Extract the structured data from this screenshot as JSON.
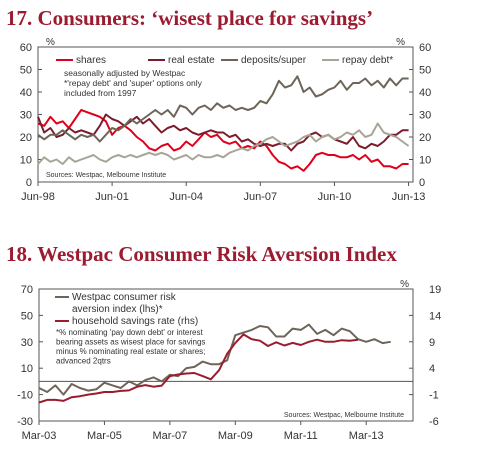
{
  "chart_data": [
    {
      "type": "line",
      "title": "17. Consumers: ‘wisest place for savings’",
      "y_unit_left": "%",
      "y_unit_right": "%",
      "ylim": [
        0,
        60
      ],
      "y_ticks": [
        0,
        10,
        20,
        30,
        40,
        50,
        60
      ],
      "x_tick_labels": [
        "Jun-98",
        "Jun-01",
        "Jun-04",
        "Jun-07",
        "Jun-10",
        "Jun-13"
      ],
      "x_ticks": [
        1998.42,
        2001.42,
        2004.42,
        2007.42,
        2010.42,
        2013.42
      ],
      "xlim": [
        1998.42,
        2013.6
      ],
      "notes": [
        "seasonally adjusted by Westpac",
        "*'repay debt' and 'super' options only",
        "included from 1997"
      ],
      "source": "Sources:  Westpac, Melbourne Institute",
      "series": [
        {
          "name": "shares",
          "color": "#e0001b",
          "x": [
            1998.42,
            1998.67,
            1998.92,
            1999.17,
            1999.42,
            1999.67,
            1999.92,
            2000.17,
            2000.42,
            2000.67,
            2000.92,
            2001.17,
            2001.42,
            2001.67,
            2001.92,
            2002.17,
            2002.42,
            2002.67,
            2002.92,
            2003.17,
            2003.42,
            2003.67,
            2003.92,
            2004.17,
            2004.42,
            2004.67,
            2004.92,
            2005.17,
            2005.42,
            2005.67,
            2005.92,
            2006.17,
            2006.42,
            2006.67,
            2006.92,
            2007.17,
            2007.42,
            2007.67,
            2007.92,
            2008.17,
            2008.42,
            2008.67,
            2008.92,
            2009.17,
            2009.42,
            2009.67,
            2009.92,
            2010.17,
            2010.42,
            2010.67,
            2010.92,
            2011.17,
            2011.42,
            2011.67,
            2011.92,
            2012.17,
            2012.42,
            2012.67,
            2012.92,
            2013.17,
            2013.42
          ],
          "y": [
            26,
            25,
            29,
            26,
            27,
            24,
            28,
            32,
            31,
            30,
            29,
            27,
            21,
            24,
            25,
            23,
            20,
            18,
            15,
            14,
            16,
            17,
            14,
            15,
            18,
            16,
            19,
            22,
            20,
            21,
            18,
            17,
            18,
            15,
            16,
            15,
            18,
            16,
            12,
            9,
            8,
            6,
            7,
            5,
            8,
            12,
            13,
            12,
            12,
            11,
            11,
            12,
            10,
            12,
            9,
            10,
            7,
            7,
            6,
            8,
            8
          ]
        },
        {
          "name": "real estate",
          "color": "#7a1c2c",
          "x": [
            1998.42,
            1998.67,
            1998.92,
            1999.17,
            1999.42,
            1999.67,
            1999.92,
            2000.17,
            2000.42,
            2000.67,
            2000.92,
            2001.17,
            2001.42,
            2001.67,
            2001.92,
            2002.17,
            2002.42,
            2002.67,
            2002.92,
            2003.17,
            2003.42,
            2003.67,
            2003.92,
            2004.17,
            2004.42,
            2004.67,
            2004.92,
            2005.17,
            2005.42,
            2005.67,
            2005.92,
            2006.17,
            2006.42,
            2006.67,
            2006.92,
            2007.17,
            2007.42,
            2007.67,
            2007.92,
            2008.17,
            2008.42,
            2008.67,
            2008.92,
            2009.17,
            2009.42,
            2009.67,
            2009.92,
            2010.17,
            2010.42,
            2010.67,
            2010.92,
            2011.17,
            2011.42,
            2011.67,
            2011.92,
            2012.17,
            2012.42,
            2012.67,
            2012.92,
            2013.17,
            2013.42
          ],
          "y": [
            29,
            22,
            24,
            20,
            21,
            24,
            22,
            23,
            22,
            21,
            25,
            30,
            28,
            27,
            25,
            27,
            29,
            26,
            28,
            25,
            22,
            24,
            25,
            23,
            24,
            22,
            21,
            22,
            23,
            22,
            22,
            20,
            21,
            18,
            19,
            17,
            16,
            17,
            16,
            17,
            17,
            14,
            17,
            18,
            21,
            22,
            20,
            21,
            19,
            18,
            17,
            20,
            16,
            15,
            17,
            16,
            18,
            21,
            21,
            23,
            23
          ]
        },
        {
          "name": "deposits/super",
          "color": "#6e6559",
          "x": [
            1998.42,
            1998.67,
            1998.92,
            1999.17,
            1999.42,
            1999.67,
            1999.92,
            2000.17,
            2000.42,
            2000.67,
            2000.92,
            2001.17,
            2001.42,
            2001.67,
            2001.92,
            2002.17,
            2002.42,
            2002.67,
            2002.92,
            2003.17,
            2003.42,
            2003.67,
            2003.92,
            2004.17,
            2004.42,
            2004.67,
            2004.92,
            2005.17,
            2005.42,
            2005.67,
            2005.92,
            2006.17,
            2006.42,
            2006.67,
            2006.92,
            2007.17,
            2007.42,
            2007.67,
            2007.92,
            2008.17,
            2008.42,
            2008.67,
            2008.92,
            2009.17,
            2009.42,
            2009.67,
            2009.92,
            2010.17,
            2010.42,
            2010.67,
            2010.92,
            2011.17,
            2011.42,
            2011.67,
            2011.92,
            2012.17,
            2012.42,
            2012.67,
            2012.92,
            2013.17,
            2013.42
          ],
          "y": [
            21,
            19,
            21,
            21,
            23,
            21,
            19,
            21,
            20,
            21,
            18,
            21,
            24,
            23,
            25,
            28,
            26,
            28,
            30,
            32,
            30,
            32,
            29,
            34,
            33,
            30,
            33,
            34,
            32,
            35,
            33,
            34,
            32,
            33,
            32,
            33,
            36,
            35,
            39,
            45,
            42,
            43,
            47,
            40,
            42,
            38,
            39,
            41,
            42,
            45,
            41,
            44,
            44,
            46,
            43,
            45,
            42,
            46,
            43,
            46,
            46
          ]
        },
        {
          "name": "repay debt*",
          "color": "#a8a596",
          "x": [
            1998.42,
            1998.67,
            1998.92,
            1999.17,
            1999.42,
            1999.67,
            1999.92,
            2000.17,
            2000.42,
            2000.67,
            2000.92,
            2001.17,
            2001.42,
            2001.67,
            2001.92,
            2002.17,
            2002.42,
            2002.67,
            2002.92,
            2003.17,
            2003.42,
            2003.67,
            2003.92,
            2004.17,
            2004.42,
            2004.67,
            2004.92,
            2005.17,
            2005.42,
            2005.67,
            2005.92,
            2006.17,
            2006.42,
            2006.67,
            2006.92,
            2007.17,
            2007.42,
            2007.67,
            2007.92,
            2008.17,
            2008.42,
            2008.67,
            2008.92,
            2009.17,
            2009.42,
            2009.67,
            2009.92,
            2010.17,
            2010.42,
            2010.67,
            2010.92,
            2011.17,
            2011.42,
            2011.67,
            2011.92,
            2012.17,
            2012.42,
            2012.67,
            2012.92,
            2013.17,
            2013.42
          ],
          "y": [
            8,
            11,
            9,
            10,
            8,
            11,
            9,
            10,
            11,
            12,
            10,
            9,
            11,
            12,
            11,
            12,
            11,
            12,
            13,
            12,
            13,
            12,
            10,
            11,
            12,
            10,
            12,
            11,
            11,
            12,
            11,
            13,
            14,
            15,
            14,
            16,
            17,
            19,
            20,
            18,
            16,
            17,
            18,
            20,
            21,
            18,
            20,
            21,
            19,
            20,
            22,
            21,
            23,
            20,
            21,
            26,
            22,
            21,
            20,
            18,
            16
          ]
        }
      ]
    },
    {
      "type": "line",
      "title": "18. Westpac Consumer Risk Aversion Index",
      "y_unit_right": "%",
      "ylim": [
        -30,
        70
      ],
      "y_ticks": [
        -30,
        -10,
        10,
        30,
        50,
        70
      ],
      "y2lim": [
        -6,
        19
      ],
      "y2_ticks": [
        -6,
        -1,
        4,
        9,
        14,
        19
      ],
      "x_tick_labels": [
        "Mar-03",
        "Mar-05",
        "Mar-07",
        "Mar-09",
        "Mar-11",
        "Mar-13"
      ],
      "x_ticks": [
        2003.17,
        2005.17,
        2007.17,
        2009.17,
        2011.17,
        2013.17
      ],
      "xlim": [
        2003.17,
        2014.6
      ],
      "notes": [
        "*% nominating 'pay down debt' or interest",
        "bearing assets as wisest place for savings",
        "minus % nominating real estate or shares;",
        "advanced 2qtrs"
      ],
      "source": "Sources: Westpac, Melbourne Institute",
      "series": [
        {
          "name": "Westpac consumer risk aversion index (lhs)*",
          "axis": "left",
          "color": "#6e6559",
          "x": [
            2003.17,
            2003.42,
            2003.67,
            2003.92,
            2004.17,
            2004.42,
            2004.67,
            2004.92,
            2005.17,
            2005.42,
            2005.67,
            2005.92,
            2006.17,
            2006.42,
            2006.67,
            2006.92,
            2007.17,
            2007.42,
            2007.67,
            2007.92,
            2008.17,
            2008.42,
            2008.67,
            2008.92,
            2009.17,
            2009.42,
            2009.67,
            2009.92,
            2010.17,
            2010.42,
            2010.67,
            2010.92,
            2011.17,
            2011.42,
            2011.67,
            2011.92,
            2012.17,
            2012.42,
            2012.67,
            2012.92,
            2013.17,
            2013.42,
            2013.67,
            2013.92
          ],
          "y": [
            -5,
            -8,
            -3,
            -10,
            -2,
            -5,
            -7,
            -6,
            -1,
            -3,
            -5,
            0,
            -3,
            1,
            3,
            0,
            5,
            4,
            10,
            11,
            15,
            13,
            13,
            16,
            35,
            37,
            39,
            42,
            41,
            34,
            34,
            40,
            39,
            43,
            36,
            39,
            35,
            40,
            38,
            32,
            30,
            32,
            29,
            30
          ]
        },
        {
          "name": "household savings rate (rhs)",
          "axis": "right",
          "color": "#9b1b30",
          "x": [
            2003.17,
            2003.42,
            2003.67,
            2003.92,
            2004.17,
            2004.42,
            2004.67,
            2004.92,
            2005.17,
            2005.42,
            2005.67,
            2005.92,
            2006.17,
            2006.42,
            2006.67,
            2006.92,
            2007.17,
            2007.42,
            2007.67,
            2007.92,
            2008.17,
            2008.42,
            2008.67,
            2008.92,
            2009.17,
            2009.42,
            2009.67,
            2009.92,
            2010.17,
            2010.42,
            2010.67,
            2010.92,
            2011.17,
            2011.42,
            2011.67,
            2011.92,
            2012.17,
            2012.42,
            2012.67,
            2012.92
          ],
          "y": [
            -2.5,
            -2.0,
            -2.0,
            -2.2,
            -1.5,
            -1.3,
            -1.0,
            -0.8,
            -0.5,
            -0.5,
            -0.3,
            -0.2,
            0.5,
            0.8,
            0.5,
            0.7,
            2.5,
            2.8,
            3.0,
            3.1,
            2.5,
            1.9,
            3.6,
            6.7,
            8.8,
            10.4,
            9.5,
            9.2,
            8.2,
            8.9,
            8.3,
            8.8,
            8.4,
            9.0,
            9.4,
            9.0,
            9.0,
            9.3,
            9.2,
            9.4
          ]
        }
      ]
    }
  ]
}
